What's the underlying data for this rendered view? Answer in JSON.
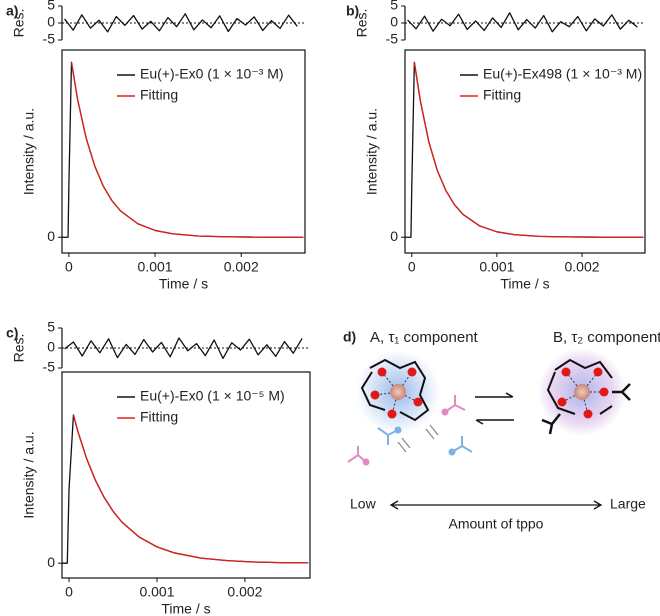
{
  "chart_data": [
    {
      "type": "line",
      "panel_label": "a)",
      "ylabel": "Res.",
      "frame": "left",
      "xlim": [
        -8e-05,
        0.00274
      ],
      "ylim": [
        -5,
        5
      ],
      "yticks": [
        -5,
        0,
        5
      ],
      "reference_line": 0,
      "x": [
        -5e-05,
        5e-05,
        0.00015,
        0.00025,
        0.00035,
        0.00045,
        0.00055,
        0.00065,
        0.00075,
        0.00085,
        0.00095,
        0.00105,
        0.00115,
        0.00125,
        0.00135,
        0.00145,
        0.00155,
        0.00165,
        0.00175,
        0.00185,
        0.00195,
        0.00205,
        0.00215,
        0.00225,
        0.00235,
        0.00245,
        0.00255,
        0.00265
      ],
      "series": [
        {
          "color": "#111111",
          "values": [
            1.2,
            -2.1,
            2.4,
            -1.5,
            0.8,
            -2.6,
            1.9,
            -0.7,
            2.2,
            -1.8,
            0.5,
            -2.3,
            1.6,
            -1.1,
            2.7,
            -2.0,
            0.9,
            -1.4,
            2.1,
            -2.5,
            1.3,
            -0.6,
            1.8,
            -2.2,
            0.7,
            -1.6,
            2.3,
            -1.0
          ]
        }
      ]
    },
    {
      "type": "line",
      "xlabel": "Time / s",
      "ylabel": "Intensity / a.u.",
      "frame": "box",
      "legend": true,
      "xlim": [
        -8e-05,
        0.00274
      ],
      "xticks": [
        0,
        0.001,
        0.002
      ],
      "ylim": [
        -0.09,
        1.07
      ],
      "yticks": [
        0
      ],
      "x": [
        -8e-05,
        -1e-05,
        0,
        3e-05,
        0.0001,
        0.0002,
        0.0003,
        0.0004,
        0.0005,
        0.0006,
        0.0008,
        0.001,
        0.0012,
        0.0015,
        0.0018,
        0.0021,
        0.0024,
        0.00272
      ],
      "series": [
        {
          "name": "Eu(+)-Ex0 (1 × 10⁻³ M)",
          "color": "#111111",
          "values": [
            0,
            0,
            0.3,
            1,
            0.79,
            0.567,
            0.407,
            0.291,
            0.209,
            0.15,
            0.077,
            0.039,
            0.02,
            0.007,
            0.003,
            0.001,
            0,
            0
          ]
        },
        {
          "name": "Fitting",
          "color": "#e0201b",
          "values": [
            null,
            null,
            null,
            1,
            0.79,
            0.567,
            0.407,
            0.291,
            0.209,
            0.15,
            0.077,
            0.039,
            0.02,
            0.007,
            0.003,
            0.001,
            0,
            0
          ]
        }
      ]
    },
    {
      "type": "line",
      "panel_label": "b)",
      "ylabel": "Res.",
      "frame": "left",
      "xlim": [
        -8e-05,
        0.00274
      ],
      "ylim": [
        -5,
        5
      ],
      "yticks": [
        -5,
        0,
        5
      ],
      "reference_line": 0,
      "x": [
        -5e-05,
        5e-05,
        0.00015,
        0.00025,
        0.00035,
        0.00045,
        0.00055,
        0.00065,
        0.00075,
        0.00085,
        0.00095,
        0.00105,
        0.00115,
        0.00125,
        0.00135,
        0.00145,
        0.00155,
        0.00165,
        0.00175,
        0.00185,
        0.00195,
        0.00205,
        0.00215,
        0.00225,
        0.00235,
        0.00245,
        0.00255,
        0.00265
      ],
      "series": [
        {
          "color": "#111111",
          "values": [
            0.9,
            -1.7,
            2.0,
            -2.4,
            1.1,
            -0.8,
            2.6,
            -1.9,
            0.6,
            -2.2,
            1.5,
            -1.3,
            3.0,
            -2.0,
            1.0,
            -1.5,
            2.2,
            -2.6,
            0.4,
            -1.1,
            1.9,
            -2.3,
            1.2,
            -0.9,
            2.4,
            -1.8,
            0.8,
            -1.2
          ]
        }
      ]
    },
    {
      "type": "line",
      "xlabel": "Time / s",
      "ylabel": "Intensity / a.u.",
      "frame": "box",
      "legend": true,
      "xlim": [
        -8e-05,
        0.00274
      ],
      "xticks": [
        0,
        0.001,
        0.002
      ],
      "ylim": [
        -0.09,
        1.07
      ],
      "yticks": [
        0
      ],
      "x": [
        -8e-05,
        -1e-05,
        0,
        3e-05,
        0.0001,
        0.0002,
        0.0003,
        0.0004,
        0.0005,
        0.0006,
        0.0008,
        0.001,
        0.0012,
        0.0015,
        0.0018,
        0.0021,
        0.0024,
        0.00272
      ],
      "series": [
        {
          "name": "Eu(+)-Ex498 (1 × 10⁻³ M)",
          "color": "#111111",
          "values": [
            0,
            0,
            0.3,
            1,
            0.78,
            0.545,
            0.381,
            0.267,
            0.187,
            0.131,
            0.064,
            0.031,
            0.015,
            0.005,
            0.002,
            0.001,
            0,
            0
          ]
        },
        {
          "name": "Fitting",
          "color": "#e0201b",
          "values": [
            null,
            null,
            null,
            1,
            0.78,
            0.545,
            0.381,
            0.267,
            0.187,
            0.131,
            0.064,
            0.031,
            0.015,
            0.005,
            0.002,
            0.001,
            0,
            0
          ]
        }
      ]
    },
    {
      "type": "line",
      "panel_label": "c)",
      "ylabel": "Res.",
      "frame": "left",
      "xlim": [
        -8e-05,
        0.00274
      ],
      "ylim": [
        -5,
        5
      ],
      "yticks": [
        -5,
        0,
        5
      ],
      "reference_line": 0,
      "x": [
        -5e-05,
        5e-05,
        0.00015,
        0.00025,
        0.00035,
        0.00045,
        0.00055,
        0.00065,
        0.00075,
        0.00085,
        0.00095,
        0.00105,
        0.00115,
        0.00125,
        0.00135,
        0.00145,
        0.00155,
        0.00165,
        0.00175,
        0.00185,
        0.00195,
        0.00205,
        0.00215,
        0.00225,
        0.00235,
        0.00245,
        0.00255,
        0.00265
      ],
      "series": [
        {
          "color": "#111111",
          "values": [
            -0.2,
            1.5,
            -2.0,
            1.8,
            -1.2,
            2.3,
            -2.4,
            0.9,
            -1.6,
            2.1,
            -1.0,
            1.4,
            -2.2,
            2.5,
            -0.7,
            1.1,
            -1.9,
            2.0,
            -2.6,
            1.3,
            -0.5,
            2.2,
            -1.7,
            0.8,
            -2.1,
            1.6,
            -1.3,
            2.4
          ]
        }
      ]
    },
    {
      "type": "line",
      "xlabel": "Time / s",
      "ylabel": "Intensity / a.u.",
      "frame": "box",
      "legend": true,
      "xlim": [
        -8e-05,
        0.00274
      ],
      "xticks": [
        0,
        0.001,
        0.002
      ],
      "ylim": [
        -0.1,
        1.29
      ],
      "yticks": [
        0
      ],
      "x": [
        -8e-05,
        -2e-05,
        0,
        5e-05,
        0.0001,
        0.0002,
        0.0003,
        0.0004,
        0.0005,
        0.0006,
        0.0008,
        0.001,
        0.0012,
        0.0015,
        0.0018,
        0.0021,
        0.0024,
        0.00272
      ],
      "series": [
        {
          "name": "Eu(+)-Ex0 (1 × 10⁻⁵ M)",
          "color": "#111111",
          "values": [
            0,
            0,
            0.5,
            1,
            0.89,
            0.706,
            0.559,
            0.443,
            0.351,
            0.278,
            0.175,
            0.11,
            0.069,
            0.034,
            0.017,
            0.008,
            0.004,
            0.002
          ]
        },
        {
          "name": "Fitting",
          "color": "#e0201b",
          "values": [
            null,
            null,
            null,
            1,
            0.89,
            0.706,
            0.559,
            0.443,
            0.351,
            0.278,
            0.175,
            0.11,
            0.069,
            0.034,
            0.017,
            0.008,
            0.004,
            0.002
          ]
        }
      ]
    }
  ],
  "diagram": {
    "panel_label": "d)",
    "left_title": "A, τ₁ component",
    "right_title": "B, τ₂ component",
    "axis_low": "Low",
    "axis_high": "Large",
    "axis_label": "Amount of tppo"
  }
}
